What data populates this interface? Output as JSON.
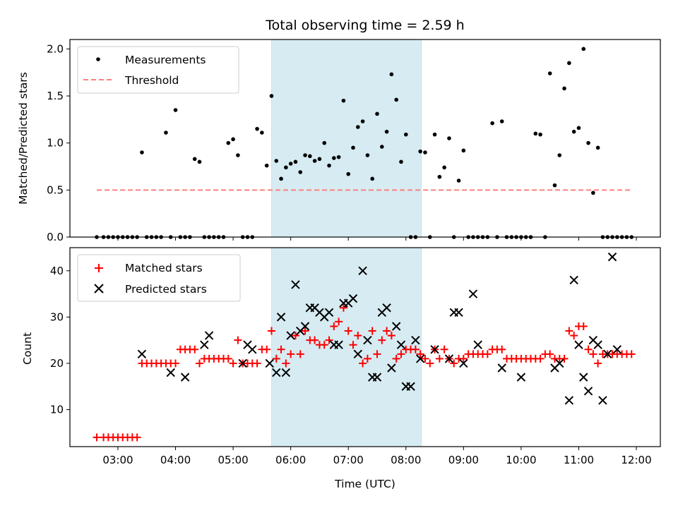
{
  "chart_data": [
    {
      "type": "scatter",
      "title": "Total observing time = 2.59 h",
      "xlabel": "",
      "ylabel": "Matched/Predicted stars",
      "xlim": [
        "02:10",
        "12:25"
      ],
      "ylim": [
        0,
        2.1
      ],
      "yticks": [
        "0.0",
        "0.5",
        "1.0",
        "1.5",
        "2.0"
      ],
      "xticks": [
        "03:00",
        "04:00",
        "05:00",
        "06:00",
        "07:00",
        "08:00",
        "09:00",
        "10:00",
        "11:00",
        "12:00"
      ],
      "shaded_span": [
        "05:40",
        "08:16"
      ],
      "legend": {
        "placement": "upper-left",
        "entries": [
          "Measurements",
          "Threshold"
        ]
      },
      "series": [
        {
          "name": "Measurements",
          "marker": "dot",
          "color": "#000000",
          "x": [
            "02:38",
            "02:45",
            "02:50",
            "02:55",
            "03:00",
            "03:05",
            "03:10",
            "03:15",
            "03:20",
            "03:25",
            "03:30",
            "03:35",
            "03:40",
            "03:45",
            "03:50",
            "03:55",
            "04:00",
            "04:05",
            "04:10",
            "04:15",
            "04:20",
            "04:25",
            "04:30",
            "04:35",
            "04:40",
            "04:45",
            "04:50",
            "04:55",
            "05:00",
            "05:05",
            "05:10",
            "05:15",
            "05:20",
            "05:25",
            "05:30",
            "05:35",
            "05:40",
            "05:45",
            "05:50",
            "05:55",
            "06:00",
            "06:05",
            "06:10",
            "06:15",
            "06:20",
            "06:25",
            "06:30",
            "06:35",
            "06:40",
            "06:45",
            "06:50",
            "06:55",
            "07:00",
            "07:05",
            "07:10",
            "07:15",
            "07:20",
            "07:25",
            "07:30",
            "07:35",
            "07:40",
            "07:45",
            "07:50",
            "07:55",
            "08:00",
            "08:05",
            "08:10",
            "08:15",
            "08:20",
            "08:25",
            "08:30",
            "08:35",
            "08:40",
            "08:45",
            "08:50",
            "08:55",
            "09:00",
            "09:05",
            "09:10",
            "09:15",
            "09:20",
            "09:25",
            "09:30",
            "09:35",
            "09:40",
            "09:45",
            "09:50",
            "09:55",
            "10:00",
            "10:05",
            "10:10",
            "10:15",
            "10:20",
            "10:25",
            "10:30",
            "10:35",
            "10:40",
            "10:45",
            "10:50",
            "10:55",
            "11:00",
            "11:05",
            "11:10",
            "11:15",
            "11:20",
            "11:25",
            "11:30",
            "11:35",
            "11:40",
            "11:45",
            "11:50",
            "11:55"
          ],
          "y": [
            0,
            0,
            0,
            0,
            0,
            0,
            0,
            0,
            0,
            0.9,
            0,
            0,
            0,
            0,
            1.11,
            0,
            1.35,
            0,
            0,
            0,
            0.83,
            0.8,
            0,
            0,
            0,
            0,
            0,
            1.0,
            1.04,
            0.87,
            0,
            0,
            0,
            1.15,
            1.11,
            0.76,
            1.5,
            0.81,
            0.62,
            0.74,
            0.78,
            0.8,
            0.69,
            0.87,
            0.86,
            0.81,
            0.83,
            1.0,
            0.76,
            0.84,
            0.85,
            1.45,
            0.67,
            0.95,
            1.17,
            1.23,
            0.87,
            0.62,
            1.31,
            0.96,
            1.12,
            1.73,
            1.46,
            0.8,
            1.09,
            0,
            0,
            0.91,
            0.9,
            0,
            1.09,
            0.64,
            0.74,
            1.05,
            0,
            0.6,
            0.92,
            0,
            0,
            0,
            0,
            0,
            1.21,
            0,
            1.23,
            0,
            0,
            0,
            0,
            0,
            0,
            1.1,
            1.09,
            0,
            1.74,
            0.55,
            0.87,
            1.58,
            1.85,
            1.12,
            1.16,
            2.0,
            1.0,
            0.47,
            0.95,
            0,
            0,
            0,
            0,
            0,
            0,
            0
          ]
        },
        {
          "name": "Threshold",
          "marker": "dashed-line",
          "color": "#ff7f7f",
          "x": [
            "02:38",
            "11:55"
          ],
          "y": [
            0.5,
            0.5
          ]
        }
      ]
    },
    {
      "type": "scatter",
      "title": "",
      "xlabel": "Time (UTC)",
      "ylabel": "Count",
      "xlim": [
        "02:10",
        "12:25"
      ],
      "ylim": [
        2,
        45
      ],
      "yticks": [
        "10",
        "20",
        "30",
        "40"
      ],
      "xticks": [
        "03:00",
        "04:00",
        "05:00",
        "06:00",
        "07:00",
        "08:00",
        "09:00",
        "10:00",
        "11:00",
        "12:00"
      ],
      "shaded_span": [
        "05:40",
        "08:16"
      ],
      "legend": {
        "placement": "upper-left",
        "entries": [
          "Matched stars",
          "Predicted stars"
        ]
      },
      "series": [
        {
          "name": "Matched stars",
          "marker": "plus",
          "color": "#ff0000",
          "x": [
            "02:38",
            "02:45",
            "02:50",
            "02:55",
            "03:00",
            "03:05",
            "03:10",
            "03:15",
            "03:20",
            "03:25",
            "03:30",
            "03:35",
            "03:40",
            "03:45",
            "03:50",
            "03:55",
            "04:00",
            "04:05",
            "04:10",
            "04:15",
            "04:20",
            "04:25",
            "04:30",
            "04:35",
            "04:40",
            "04:45",
            "04:50",
            "04:55",
            "05:00",
            "05:05",
            "05:10",
            "05:15",
            "05:20",
            "05:25",
            "05:30",
            "05:35",
            "05:40",
            "05:45",
            "05:50",
            "05:55",
            "06:00",
            "06:05",
            "06:10",
            "06:15",
            "06:20",
            "06:25",
            "06:30",
            "06:35",
            "06:40",
            "06:45",
            "06:50",
            "06:55",
            "07:00",
            "07:05",
            "07:10",
            "07:15",
            "07:20",
            "07:25",
            "07:30",
            "07:35",
            "07:40",
            "07:45",
            "07:50",
            "07:55",
            "08:00",
            "08:05",
            "08:10",
            "08:15",
            "08:20",
            "08:25",
            "08:30",
            "08:35",
            "08:40",
            "08:45",
            "08:50",
            "08:55",
            "09:00",
            "09:05",
            "09:10",
            "09:15",
            "09:20",
            "09:25",
            "09:30",
            "09:35",
            "09:40",
            "09:45",
            "09:50",
            "09:55",
            "10:00",
            "10:05",
            "10:10",
            "10:15",
            "10:20",
            "10:25",
            "10:30",
            "10:35",
            "10:40",
            "10:45",
            "10:50",
            "10:55",
            "11:00",
            "11:05",
            "11:10",
            "11:15",
            "11:20",
            "11:25",
            "11:30",
            "11:35",
            "11:40",
            "11:45",
            "11:50",
            "11:55"
          ],
          "y": [
            4,
            4,
            4,
            4,
            4,
            4,
            4,
            4,
            4,
            20,
            20,
            20,
            20,
            20,
            20,
            20,
            20,
            23,
            23,
            23,
            23,
            20,
            21,
            21,
            21,
            21,
            21,
            21,
            20,
            25,
            20,
            20,
            20,
            20,
            23,
            23,
            27,
            21,
            23,
            20,
            22,
            26,
            22,
            27,
            25,
            25,
            24,
            24,
            25,
            28,
            29,
            32,
            27,
            24,
            26,
            20,
            21,
            27,
            22,
            25,
            27,
            26,
            21,
            22,
            23,
            23,
            23,
            22,
            21,
            20,
            23,
            21,
            23,
            21,
            20,
            21,
            21,
            22,
            22,
            22,
            22,
            22,
            23,
            23,
            23,
            21,
            21,
            21,
            21,
            21,
            21,
            21,
            21,
            22,
            22,
            21,
            21,
            21,
            27,
            26,
            28,
            28,
            23,
            22,
            20,
            22,
            22,
            22,
            22,
            22,
            22,
            22
          ]
        },
        {
          "name": "Predicted stars",
          "marker": "x",
          "color": "#000000",
          "x": [
            "03:25",
            "03:55",
            "04:10",
            "04:30",
            "04:35",
            "05:10",
            "05:15",
            "05:20",
            "05:38",
            "05:45",
            "05:50",
            "05:55",
            "06:00",
            "06:05",
            "06:10",
            "06:15",
            "06:20",
            "06:25",
            "06:30",
            "06:35",
            "06:40",
            "06:45",
            "06:50",
            "06:55",
            "07:00",
            "07:05",
            "07:10",
            "07:15",
            "07:20",
            "07:25",
            "07:30",
            "07:35",
            "07:40",
            "07:45",
            "07:50",
            "07:55",
            "08:00",
            "08:05",
            "08:10",
            "08:15",
            "08:30",
            "08:45",
            "08:50",
            "08:55",
            "09:00",
            "09:10",
            "09:15",
            "09:40",
            "10:00",
            "10:35",
            "10:40",
            "10:50",
            "10:55",
            "11:00",
            "11:05",
            "11:10",
            "11:15",
            "11:20",
            "11:25",
            "11:30",
            "11:35",
            "11:40"
          ],
          "y": [
            22,
            18,
            17,
            24,
            26,
            20,
            24,
            23,
            20,
            18,
            30,
            18,
            26,
            37,
            27,
            28,
            32,
            32,
            31,
            30,
            31,
            24,
            24,
            33,
            33,
            34,
            22,
            40,
            25,
            17,
            17,
            31,
            32,
            19,
            28,
            24,
            15,
            15,
            25,
            21,
            23,
            21,
            31,
            31,
            20,
            35,
            24,
            19,
            17,
            19,
            20,
            12,
            38,
            24,
            17,
            14,
            25,
            24,
            12,
            22,
            43,
            23
          ]
        }
      ]
    }
  ]
}
